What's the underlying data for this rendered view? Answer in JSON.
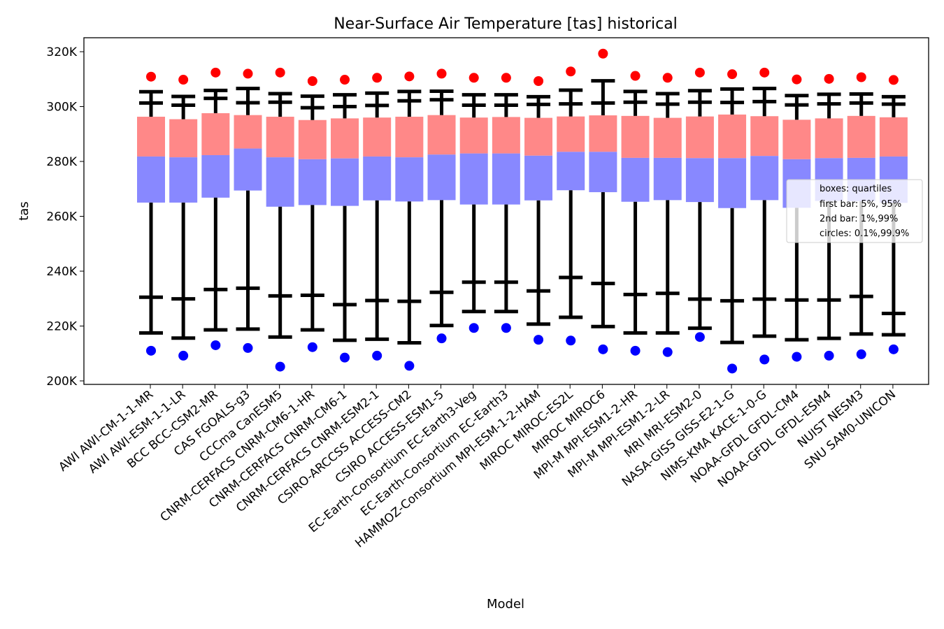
{
  "chart_data": {
    "type": "boxplot",
    "title": "Near-Surface Air Temperature [tas] historical",
    "xlabel": "Model",
    "ylabel": "tas",
    "ylim": [
      199000,
      324000
    ],
    "yticks": [
      200000,
      220000,
      240000,
      260000,
      280000,
      300000,
      320000
    ],
    "ytick_labels": [
      "200K",
      "220K",
      "240K",
      "260K",
      "280K",
      "300K",
      "320K"
    ],
    "grid": false,
    "legend_position": "right",
    "legend": [
      "boxes: quartiles",
      "first bar: 5%, 95%",
      "2nd bar: 1%,99%",
      "circles: 0.1%,99.9%"
    ],
    "colors": {
      "upper_box": "#ff8888",
      "lower_box": "#8888ff",
      "whisker": "#000000",
      "high_dot": "#ff0000",
      "low_dot": "#0000ff"
    },
    "categories": [
      "AWI AWI-CM-1-1-MR",
      "AWI AWI-ESM-1-1-LR",
      "BCC BCC-CSM2-MR",
      "CAS FGOALS-g3",
      "CCCma CanESM5",
      "CNRM-CERFACS CNRM-CM6-1-HR",
      "CNRM-CERFACS CNRM-CM6-1",
      "CNRM-CERFACS CNRM-ESM2-1",
      "CSIRO-ARCCSS ACCESS-CM2",
      "CSIRO ACCESS-ESM1-5",
      "EC-Earth-Consortium EC-Earth3-Veg",
      "EC-Earth-Consortium EC-Earth3",
      "HAMMOZ-Consortium MPI-ESM-1-2-HAM",
      "MIROC MIROC-ES2L",
      "MIROC MIROC6",
      "MPI-M MPI-ESM1-2-HR",
      "MPI-M MPI-ESM1-2-LR",
      "MRI MRI-ESM2-0",
      "NASA-GISS GISS-E2-1-G",
      "NIMS-KMA KACE-1-0-G",
      "NOAA-GFDL GFDL-CM4",
      "NOAA-GFDL GFDL-ESM4",
      "NUIST NESM3",
      "SNU SAM0-UNICON"
    ],
    "p0_1": [
      211000,
      209200,
      213000,
      212000,
      205200,
      212300,
      208500,
      209200,
      205500,
      215500,
      219300,
      219300,
      215000,
      214700,
      211500,
      211000,
      210500,
      216000,
      204500,
      207800,
      208800,
      209200,
      209700,
      211500
    ],
    "p1": [
      217500,
      215600,
      218600,
      218900,
      216000,
      218600,
      214800,
      215200,
      213900,
      220200,
      225300,
      225300,
      220700,
      223200,
      219800,
      217500,
      217500,
      219200,
      214000,
      216300,
      215000,
      215500,
      217100,
      216800
    ],
    "p5": [
      230500,
      229900,
      233300,
      233800,
      231000,
      231200,
      227800,
      229300,
      229000,
      232300,
      236000,
      236000,
      232800,
      237700,
      235500,
      231500,
      231900,
      229800,
      229200,
      229800,
      229500,
      229500,
      230800,
      224600
    ],
    "q1": [
      265000,
      265000,
      266800,
      269400,
      263500,
      264100,
      263800,
      265800,
      265400,
      265900,
      264300,
      264300,
      265800,
      269500,
      268800,
      265300,
      265900,
      265200,
      263000,
      265900,
      263100,
      265600,
      265500,
      264900
    ],
    "median": [
      281800,
      281500,
      282300,
      284700,
      281500,
      280800,
      281100,
      281800,
      281500,
      282500,
      282900,
      282900,
      282100,
      283500,
      283500,
      281300,
      281300,
      281200,
      281200,
      282000,
      280800,
      281200,
      281300,
      281800
    ],
    "q3": [
      296300,
      295400,
      297600,
      296900,
      296300,
      295100,
      295700,
      296000,
      296300,
      296900,
      296000,
      296200,
      295900,
      296400,
      296800,
      296600,
      295900,
      296400,
      297100,
      296500,
      295200,
      295700,
      296600,
      296100
    ],
    "p95": [
      301300,
      300500,
      303000,
      301400,
      301600,
      299600,
      300000,
      300400,
      302100,
      302500,
      300500,
      300500,
      300800,
      301000,
      301300,
      301600,
      300900,
      301600,
      301500,
      301800,
      300600,
      301000,
      301300,
      300900
    ],
    "p99": [
      305400,
      303700,
      305900,
      306600,
      304700,
      303800,
      304300,
      304900,
      305500,
      305600,
      304300,
      304300,
      303600,
      306000,
      309400,
      305500,
      304700,
      305800,
      306400,
      306600,
      304000,
      304500,
      304600,
      303600
    ],
    "p99_9": [
      310900,
      309800,
      312400,
      312000,
      312400,
      309300,
      309800,
      310500,
      311000,
      312000,
      310500,
      310500,
      309300,
      312800,
      319300,
      311200,
      310500,
      312400,
      311800,
      312400,
      309900,
      310100,
      310700,
      309700
    ]
  }
}
